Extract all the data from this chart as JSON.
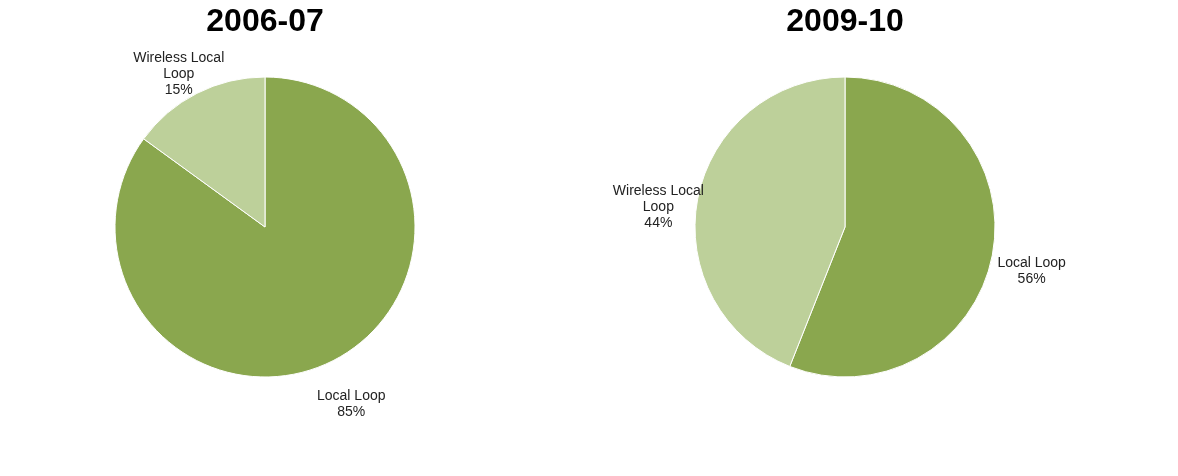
{
  "chart_data": [
    {
      "type": "pie",
      "title": "2006-07",
      "categories": [
        "Local Loop",
        "Wireless Local Loop"
      ],
      "values": [
        85,
        15
      ],
      "colors": [
        "#8aa74e",
        "#bdd09a"
      ],
      "value_labels": [
        "85%",
        "15%"
      ]
    },
    {
      "type": "pie",
      "title": "2009-10",
      "categories": [
        "Local Loop",
        "Wireless Local Loop"
      ],
      "values": [
        56,
        44
      ],
      "colors": [
        "#8aa74e",
        "#bdd09a"
      ],
      "value_labels": [
        "56%",
        "44%"
      ]
    }
  ]
}
